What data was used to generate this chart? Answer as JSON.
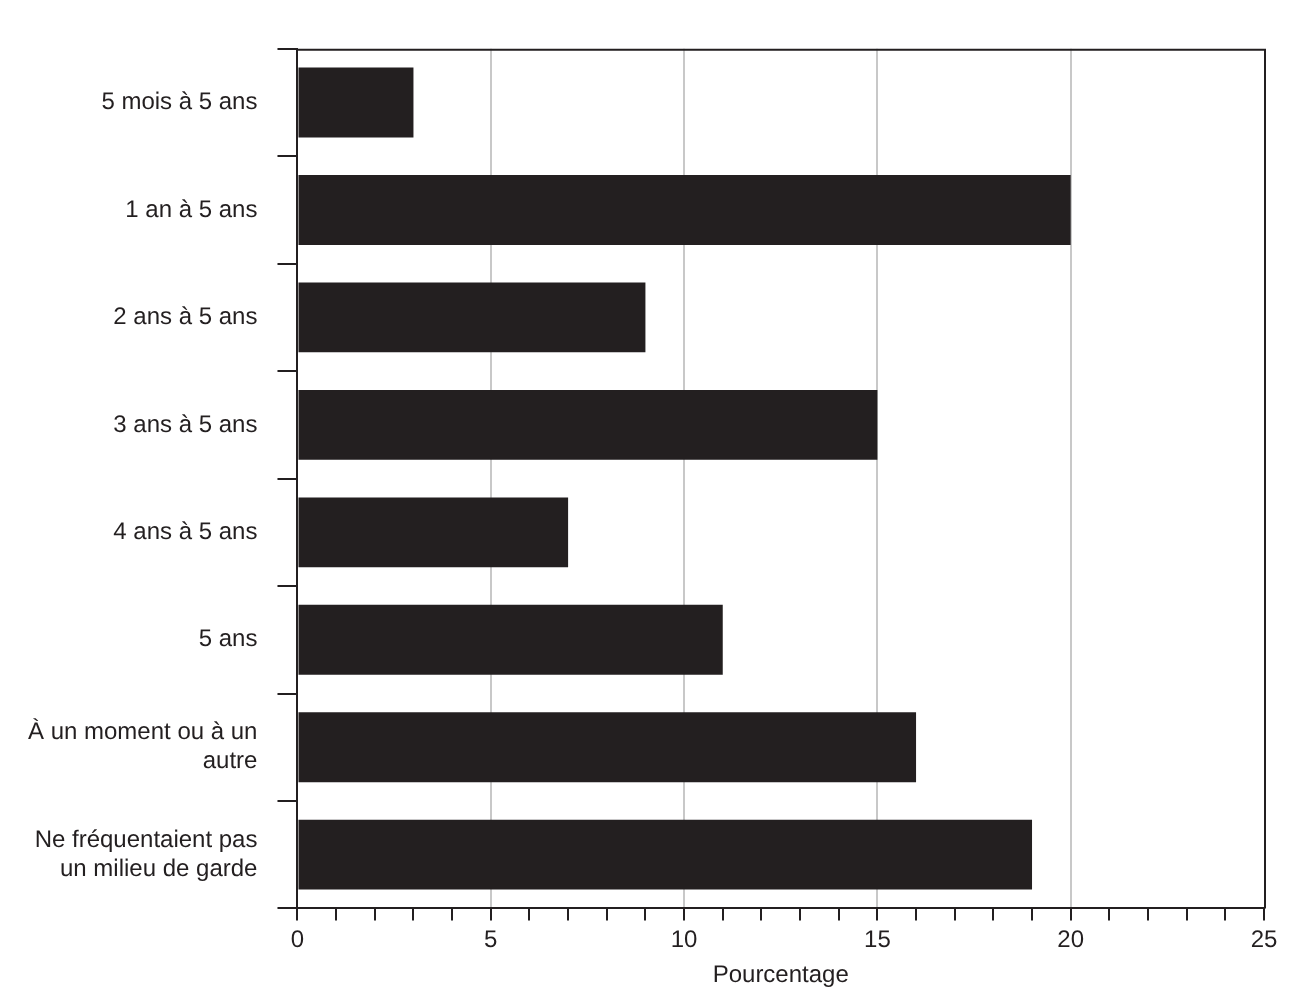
{
  "chart_data": {
    "type": "bar",
    "orientation": "horizontal",
    "xlabel": "Pourcentage",
    "categories": [
      "5 mois à 5 ans",
      "1 an à 5 ans",
      "2 ans à 5 ans",
      "3 ans à 5 ans",
      "4 ans à 5 ans",
      "5 ans",
      "À un moment ou à un autre",
      "Ne fréquentaient pas un milieu de garde"
    ],
    "values": [
      3,
      20,
      9,
      15,
      7,
      11,
      16,
      19
    ],
    "color": "#231f20",
    "xlim": [
      0,
      25
    ],
    "xticks": [
      0,
      {
        "value": 1,
        "label": null
      },
      {
        "value": 2,
        "label": null
      },
      {
        "value": 3,
        "label": null
      },
      {
        "value": 4,
        "label": null
      },
      5,
      {
        "value": 6,
        "label": null
      },
      {
        "value": 7,
        "label": null
      },
      {
        "value": 8,
        "label": null
      },
      {
        "value": 9,
        "label": null
      },
      10,
      {
        "value": 11,
        "label": null
      },
      {
        "value": 12,
        "label": null
      },
      {
        "value": 13,
        "label": null
      },
      {
        "value": 14,
        "label": null
      },
      15,
      {
        "value": 16,
        "label": null
      },
      {
        "value": 17,
        "label": null
      },
      {
        "value": 18,
        "label": null
      },
      {
        "value": 19,
        "label": null
      },
      20,
      {
        "value": 21,
        "label": null
      },
      {
        "value": 22,
        "label": null
      },
      {
        "value": 23,
        "label": null
      },
      {
        "value": 24,
        "label": null
      },
      25
    ],
    "grid": "x"
  }
}
